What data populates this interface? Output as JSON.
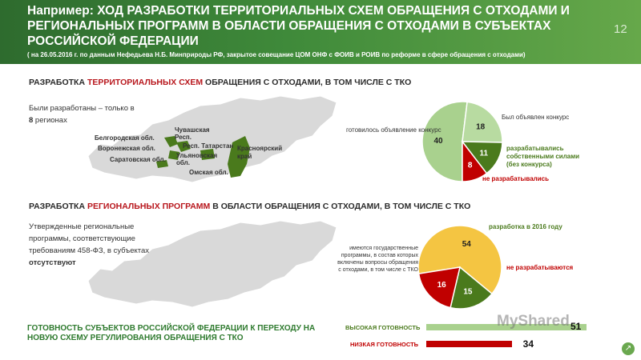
{
  "header": {
    "title": "Например: ХОД РАЗРАБОТКИ ТЕРРИТОРИАЛЬНЫХ СХЕМ ОБРАЩЕНИЯ С ОТХОДАМИ И РЕГИОНАЛЬНЫХ ПРОГРАММ В ОБЛАСТИ ОБРАЩЕНИЯ С ОТХОДАМИ В СУБЪЕКТАХ РОССИЙСКОЙ ФЕДЕРАЦИИ",
    "subtitle": "( на 26.05.2016 г. по данным Нефедьева Н.Б. Минприроды РФ, закрытое совещание ЦОМ ОНФ с ФОИВ и РОИВ по реформе в сфере обращения с отходами)",
    "page_number": "12"
  },
  "section1": {
    "title_pre": "РАЗРАБОТКА ",
    "title_hl": "ТЕРРИТОРИАЛЬНЫХ СХЕМ",
    "title_post": " ОБРАЩЕНИЯ С ОТХОДАМИ, В ТОМ ЧИСЛЕ С ТКО",
    "text_line1": "Были разработаны – только  в",
    "text_num": "8",
    "text_line2": " регионах",
    "regions": {
      "belgorod": "Белгородская обл.",
      "voronezh": "Воронежская обл.",
      "saratov": "Саратовская обл.",
      "chuvash": "Чувашская Респ.",
      "tatarstan": "Респ. Татарстан",
      "ulyanovsk": "Ульяновская обл.",
      "omsk": "Омская обл.",
      "krasnoyarsk": "Красноярский край"
    },
    "pie": {
      "labels": {
        "prepared": "готовилось объявление конкурс",
        "contest": "Был объявлен конкурс",
        "own": "разрабатывались собственными силами (без конкурса)",
        "not": "не разрабатывались"
      }
    }
  },
  "section2": {
    "title_pre": "РАЗРАБОТКА ",
    "title_hl": "РЕГИОНАЛЬНЫХ ПРОГРАММ",
    "title_post": " В ОБЛАСТИ ОБРАЩЕНИЯ С ОТХОДАМИ, В ТОМ ЧИСЛЕ С ТКО",
    "text_main": "Утвержденные региональные программы, соответствующие требованиям 458-ФЗ, в субъектах",
    "text_bold": "отсутствуют",
    "pie": {
      "labels": {
        "exist": "имеются государственные программы, в состав которых включены вопросы обращения с отходами, в том числе с ТКО",
        "dev2016": "разработка в 2016 году",
        "not": "не разрабатываются"
      }
    }
  },
  "readiness": {
    "title": "ГОТОВНОСТЬ СУБЪЕКТОВ РОССИЙСКОЙ ФЕДЕРАЦИИ К ПЕРЕХОДУ НА НОВУЮ СХЕМУ РЕГУЛИРОВАНИЯ ОБРАЩЕНИЯ С ТКО",
    "high_label": "ВЫСОКАЯ ГОТОВНОСТЬ",
    "high_value": "51",
    "low_label": "НИЗКАЯ ГОТОВНОСТЬ",
    "low_value": "34"
  },
  "watermark": "MyShared",
  "colors": {
    "green_dark": "#4a7a1c",
    "green_light": "#a9d18e",
    "red": "#c00000",
    "yellow": "#f4c542",
    "light_green_bar": "#a9d18e"
  },
  "chart_data": [
    {
      "type": "pie",
      "categories": [
        "готовилось объявление конкурс",
        "Был объявлен конкурс",
        "разрабатывались собственными силами (без конкурса)",
        "не разрабатывались"
      ],
      "values": [
        40,
        18,
        11,
        8
      ]
    },
    {
      "type": "pie",
      "categories": [
        "имеются государственные программы, в состав которых включены вопросы обращения с отходами, в том числе с ТКО",
        "разработка в 2016 году",
        "не разрабатываются"
      ],
      "values": [
        54,
        15,
        16
      ]
    },
    {
      "type": "bar",
      "categories": [
        "ВЫСОКАЯ ГОТОВНОСТЬ",
        "НИЗКАЯ ГОТОВНОСТЬ"
      ],
      "values": [
        51,
        34
      ]
    }
  ]
}
